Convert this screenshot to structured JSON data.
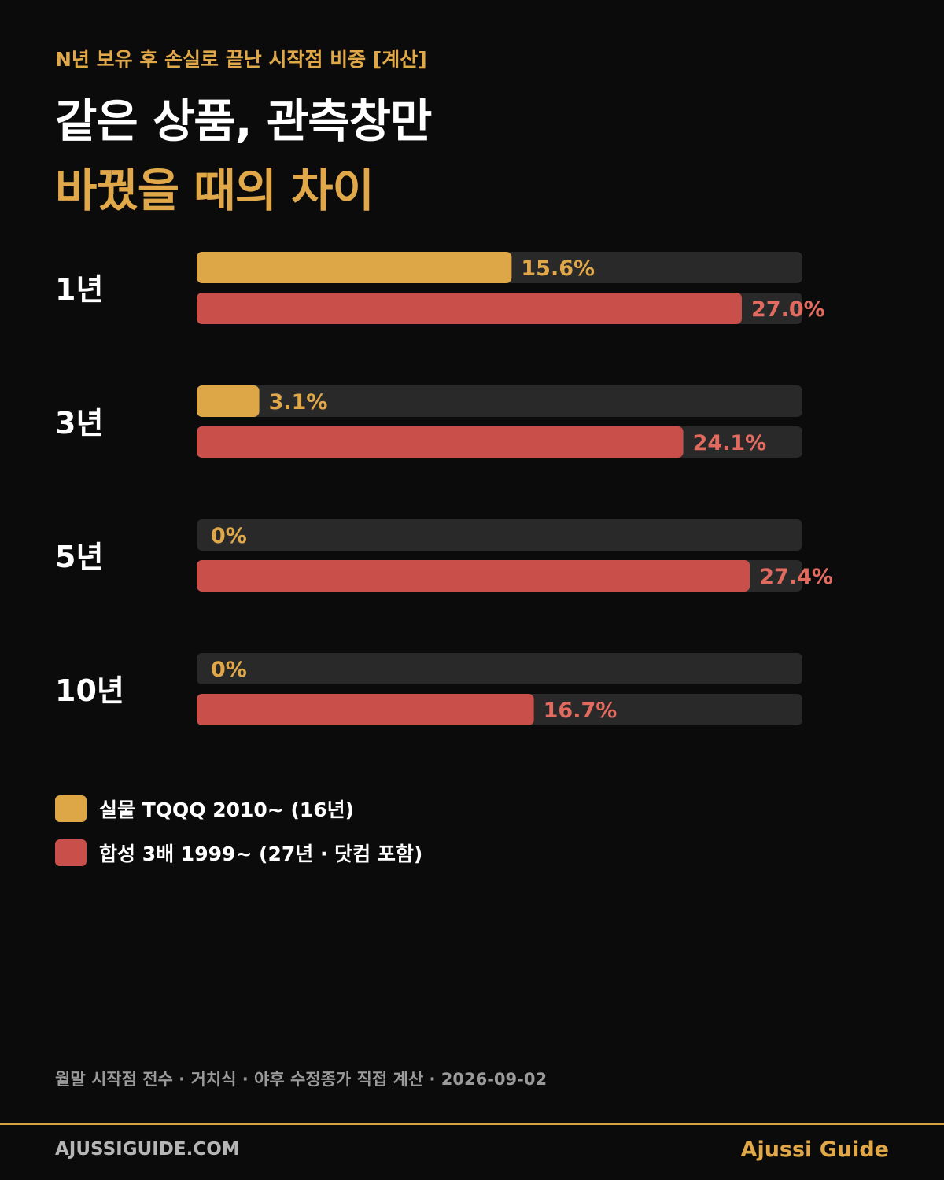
{
  "header": {
    "kicker": "N년 보유 후 손실로 끝난 시작점 비중 [계산]",
    "title_line1": "같은 상품, 관측창만",
    "title_line2": "바꿨을 때의 차이"
  },
  "colors": {
    "background": "#0b0b0b",
    "track": "#292929",
    "series_gold": "#dda748",
    "series_red": "#c9504a",
    "label_gold": "#e0a848",
    "label_red": "#e36a5e"
  },
  "chart_data": {
    "type": "bar",
    "orientation": "horizontal",
    "categories": [
      "1년",
      "3년",
      "5년",
      "10년"
    ],
    "series": [
      {
        "name": "실물 TQQQ 2010~ (16년)",
        "values": [
          15.6,
          3.1,
          0,
          0
        ],
        "labels": [
          "15.6%",
          "3.1%",
          "0%",
          "0%"
        ]
      },
      {
        "name": "합성 3배 1999~ (27년 · 닷컴 포함)",
        "values": [
          27.0,
          24.1,
          27.4,
          16.7
        ],
        "labels": [
          "27.0%",
          "24.1%",
          "27.4%",
          "16.7%"
        ]
      }
    ],
    "xlim": [
      0,
      30
    ],
    "unit": "%",
    "grid": false,
    "legend_position": "bottom-left"
  },
  "legend": [
    {
      "label": "실물 TQQQ 2010~ (16년)"
    },
    {
      "label": "합성 3배 1999~ (27년 · 닷컴 포함)"
    }
  ],
  "note": "월말 시작점 전수 · 거치식 · 야후 수정종가 직접 계산 · 2026-09-02",
  "footer": {
    "site": "AJUSSIGUIDE.COM",
    "brand": "Ajussi Guide"
  }
}
